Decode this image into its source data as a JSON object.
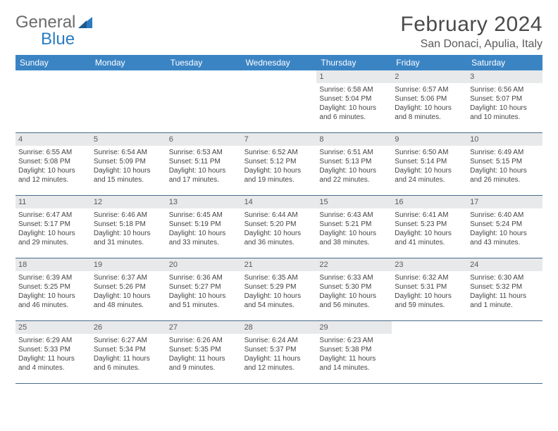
{
  "logo": {
    "part1": "General",
    "part2": "Blue"
  },
  "title": "February 2024",
  "location": "San Donaci, Apulia, Italy",
  "colors": {
    "header_bg": "#3b84c4",
    "header_text": "#ffffff",
    "daynum_bg": "#e8e9ea",
    "row_border": "#4a6a8a",
    "logo_gray": "#6b6b6b",
    "logo_blue": "#2a7bc2"
  },
  "weekdays": [
    "Sunday",
    "Monday",
    "Tuesday",
    "Wednesday",
    "Thursday",
    "Friday",
    "Saturday"
  ],
  "weeks": [
    [
      null,
      null,
      null,
      null,
      {
        "n": "1",
        "sr": "6:58 AM",
        "ss": "5:04 PM",
        "dl": "10 hours and 6 minutes."
      },
      {
        "n": "2",
        "sr": "6:57 AM",
        "ss": "5:06 PM",
        "dl": "10 hours and 8 minutes."
      },
      {
        "n": "3",
        "sr": "6:56 AM",
        "ss": "5:07 PM",
        "dl": "10 hours and 10 minutes."
      }
    ],
    [
      {
        "n": "4",
        "sr": "6:55 AM",
        "ss": "5:08 PM",
        "dl": "10 hours and 12 minutes."
      },
      {
        "n": "5",
        "sr": "6:54 AM",
        "ss": "5:09 PM",
        "dl": "10 hours and 15 minutes."
      },
      {
        "n": "6",
        "sr": "6:53 AM",
        "ss": "5:11 PM",
        "dl": "10 hours and 17 minutes."
      },
      {
        "n": "7",
        "sr": "6:52 AM",
        "ss": "5:12 PM",
        "dl": "10 hours and 19 minutes."
      },
      {
        "n": "8",
        "sr": "6:51 AM",
        "ss": "5:13 PM",
        "dl": "10 hours and 22 minutes."
      },
      {
        "n": "9",
        "sr": "6:50 AM",
        "ss": "5:14 PM",
        "dl": "10 hours and 24 minutes."
      },
      {
        "n": "10",
        "sr": "6:49 AM",
        "ss": "5:15 PM",
        "dl": "10 hours and 26 minutes."
      }
    ],
    [
      {
        "n": "11",
        "sr": "6:47 AM",
        "ss": "5:17 PM",
        "dl": "10 hours and 29 minutes."
      },
      {
        "n": "12",
        "sr": "6:46 AM",
        "ss": "5:18 PM",
        "dl": "10 hours and 31 minutes."
      },
      {
        "n": "13",
        "sr": "6:45 AM",
        "ss": "5:19 PM",
        "dl": "10 hours and 33 minutes."
      },
      {
        "n": "14",
        "sr": "6:44 AM",
        "ss": "5:20 PM",
        "dl": "10 hours and 36 minutes."
      },
      {
        "n": "15",
        "sr": "6:43 AM",
        "ss": "5:21 PM",
        "dl": "10 hours and 38 minutes."
      },
      {
        "n": "16",
        "sr": "6:41 AM",
        "ss": "5:23 PM",
        "dl": "10 hours and 41 minutes."
      },
      {
        "n": "17",
        "sr": "6:40 AM",
        "ss": "5:24 PM",
        "dl": "10 hours and 43 minutes."
      }
    ],
    [
      {
        "n": "18",
        "sr": "6:39 AM",
        "ss": "5:25 PM",
        "dl": "10 hours and 46 minutes."
      },
      {
        "n": "19",
        "sr": "6:37 AM",
        "ss": "5:26 PM",
        "dl": "10 hours and 48 minutes."
      },
      {
        "n": "20",
        "sr": "6:36 AM",
        "ss": "5:27 PM",
        "dl": "10 hours and 51 minutes."
      },
      {
        "n": "21",
        "sr": "6:35 AM",
        "ss": "5:29 PM",
        "dl": "10 hours and 54 minutes."
      },
      {
        "n": "22",
        "sr": "6:33 AM",
        "ss": "5:30 PM",
        "dl": "10 hours and 56 minutes."
      },
      {
        "n": "23",
        "sr": "6:32 AM",
        "ss": "5:31 PM",
        "dl": "10 hours and 59 minutes."
      },
      {
        "n": "24",
        "sr": "6:30 AM",
        "ss": "5:32 PM",
        "dl": "11 hours and 1 minute."
      }
    ],
    [
      {
        "n": "25",
        "sr": "6:29 AM",
        "ss": "5:33 PM",
        "dl": "11 hours and 4 minutes."
      },
      {
        "n": "26",
        "sr": "6:27 AM",
        "ss": "5:34 PM",
        "dl": "11 hours and 6 minutes."
      },
      {
        "n": "27",
        "sr": "6:26 AM",
        "ss": "5:35 PM",
        "dl": "11 hours and 9 minutes."
      },
      {
        "n": "28",
        "sr": "6:24 AM",
        "ss": "5:37 PM",
        "dl": "11 hours and 12 minutes."
      },
      {
        "n": "29",
        "sr": "6:23 AM",
        "ss": "5:38 PM",
        "dl": "11 hours and 14 minutes."
      },
      null,
      null
    ]
  ],
  "labels": {
    "sunrise": "Sunrise: ",
    "sunset": "Sunset: ",
    "daylight": "Daylight: "
  }
}
